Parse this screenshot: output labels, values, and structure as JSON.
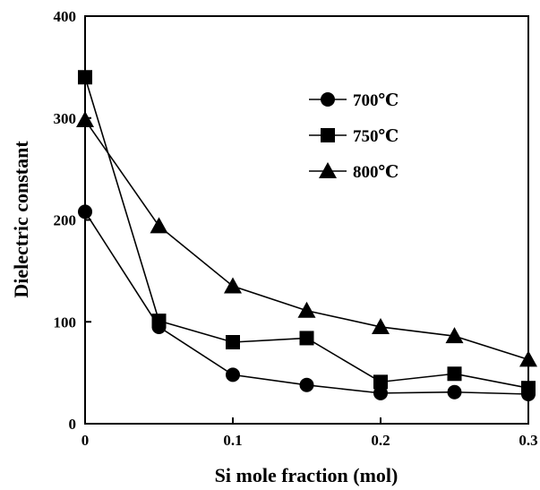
{
  "chart_data": {
    "type": "line",
    "xlabel": "Si mole fraction (mol)",
    "ylabel": "Dielectric constant",
    "x": [
      0,
      0.05,
      0.1,
      0.15,
      0.2,
      0.25,
      0.3
    ],
    "xlim": [
      0,
      0.3
    ],
    "ylim": [
      0,
      400
    ],
    "xticks": [
      0,
      0.1,
      0.2,
      0.3
    ],
    "xtick_labels": [
      "0",
      "0.1",
      "0.2",
      "0.3"
    ],
    "yticks": [
      0,
      100,
      200,
      300,
      400
    ],
    "ytick_labels": [
      "0",
      "100",
      "200",
      "300",
      "400"
    ],
    "grid": false,
    "legend_position": "top-right",
    "series": [
      {
        "name": "700℃",
        "marker": "circle",
        "values": [
          208,
          95,
          48,
          38,
          30,
          31,
          29
        ]
      },
      {
        "name": "750℃",
        "marker": "square",
        "values": [
          340,
          101,
          80,
          84,
          41,
          49,
          35
        ]
      },
      {
        "name": "800℃",
        "marker": "triangle",
        "values": [
          298,
          194,
          135,
          111,
          95,
          86,
          63
        ]
      }
    ],
    "colors": {
      "line": "#000000",
      "marker": "#000000"
    }
  }
}
